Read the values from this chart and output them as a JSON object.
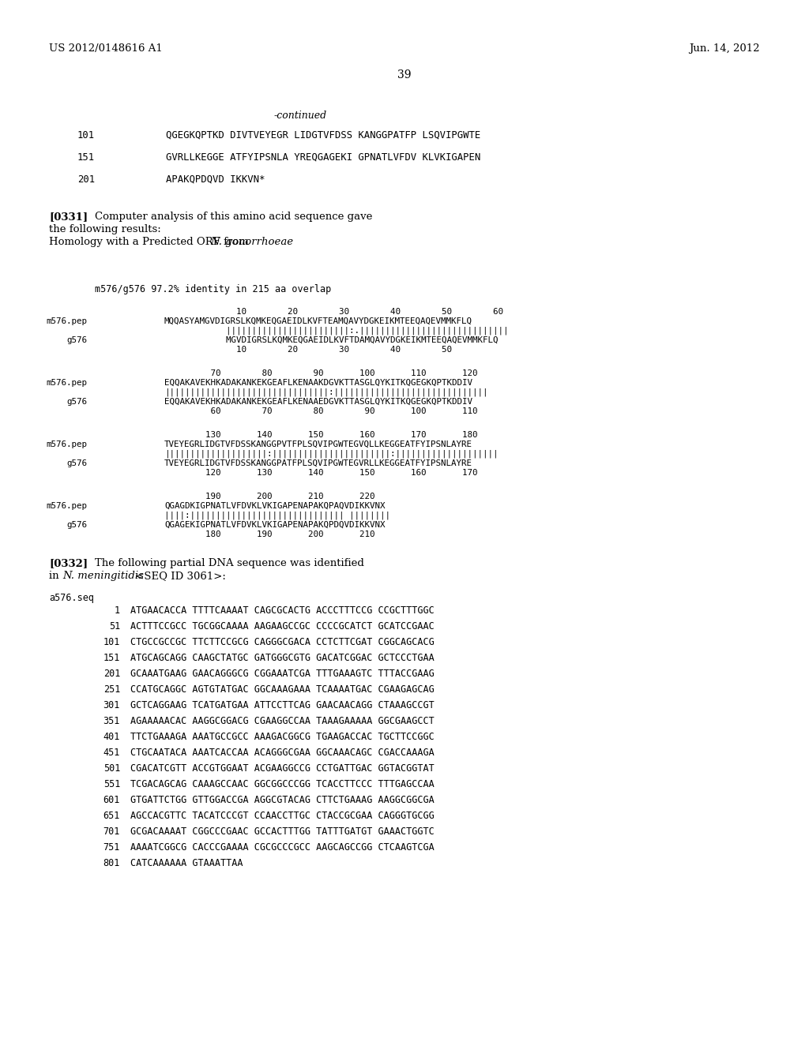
{
  "header_left": "US 2012/0148616 A1",
  "header_right": "Jun. 14, 2012",
  "page_number": "39",
  "bg": "#ffffff",
  "continued_label": "-continued",
  "seq_lines": [
    {
      "num": "101",
      "seq": "QGEGKQPTKD DIVTVEYEGR LIDGTVFDSS KANGGPATFP LSQVIPGWTE"
    },
    {
      "num": "151",
      "seq": "GVRLLKEGGE ATFYIPSNLA YREQGAGEKI GPNATLVFDV KLVKIGAPEN"
    },
    {
      "num": "201",
      "seq": "APAKQPDQVD IKKVN*"
    }
  ],
  "p0331_label": "[0331]",
  "p0331_line1": "Computer analysis of this amino acid sequence gave",
  "p0331_line2": "the following results:",
  "p0331_line3_pre": "Homology with a Predicted ORF from ",
  "p0331_line3_italic": "N. gonorrhoeae",
  "aln_header": "m576/g576 97.2% identity in 215 aa overlap",
  "aln_blocks": [
    {
      "top": "              10        20        30        40        50        60",
      "m_seq": "MQQASYAMGVDIGRSLKQMKEQGAEIDLKVFTEAMQAVYDGKEIKMTEEQAQEVMMKFLQ",
      "match": "            ||||||||||||||||||||||||:.|||||||||||||||||||||||||||||",
      "g_seq": "            MGVDIGRSLKQMKEQGAEIDLKVFTDAMQAVYDGKEIKMTEEQAQEVMMKFLQ",
      "bot": "              10        20        30        40        50"
    },
    {
      "top": "         70        80        90       100       110       120",
      "m_seq": "EQQAKAVEKHKADAKANKEKGEAFLKENAAKDGVKTTASGLQYKITKQGEGKQPTKDDIV",
      "match": "||||||||||||||||||||||||||||||||:||||||||||||||||||||||||||||||",
      "g_seq": "EQQAKAVEKHKADAKANKEKGEAFLKENAAEDGVKTTASGLQYKITKQGEGKQPTKDDIV",
      "bot": "         60        70        80        90       100       110"
    },
    {
      "top": "        130       140       150       160       170       180",
      "m_seq": "TVEYEGRLIDGTVFDSSKANGGPVTFPLSQVIPGWTEGVQLLKEGGEATFYIPSNLAYRE",
      "match": "||||||||||||||||||||:|||||||||||||||||||||||:||||||||||||||||||||",
      "g_seq": "TVEYEGRLIDGTVFDSSKANGGPATFPLSQVIPGWTEGVRLLKEGGEATFYIPSNLAYRE",
      "bot": "        120       130       140       150       160       170"
    },
    {
      "top": "        190       200       210       220",
      "m_seq": "QGAGDKIGPNATLVFDVKLVKIGAPENAPAKQPAQVDIKKVNX",
      "match": "||||:|||||||||||||||||||||||||||||| ||||||||",
      "g_seq": "QGAGEKIGPNATLVFDVKLVKIGAPENAPAKQPDQVDIKKVNX",
      "bot": "        180       190       200       210"
    }
  ],
  "p0332_label": "[0332]",
  "p0332_line1": "The following partial DNA sequence was identified",
  "p0332_line2_pre": "in ",
  "p0332_line2_italic": "N. meningitidis",
  "p0332_line2_post": " <SEQ ID 3061>:",
  "dna_label": "a576.seq",
  "dna_lines": [
    {
      "num": "1",
      "seq": "ATGAACACCA TTTTCAAAAT CAGCGCACTG ACCCTTTCCG CCGCTTTGGC"
    },
    {
      "num": "51",
      "seq": "ACTTTCCGCC TGCGGCAAAA AAGAAGCCGC CCCCGCATCT GCATCCGAAC"
    },
    {
      "num": "101",
      "seq": "CTGCCGCCGC TTCTTCCGCG CAGGGCGACA CCTCTTCGAT CGGCAGCACG"
    },
    {
      "num": "151",
      "seq": "ATGCAGCAGG CAAGCTATGC GATGGGCGTG GACATCGGAC GCTCCCTGAA"
    },
    {
      "num": "201",
      "seq": "GCAAATGAAG GAACAGGGCG CGGAAATCGA TTTGAAAGTC TTTACCGAAG"
    },
    {
      "num": "251",
      "seq": "CCATGCAGGC AGTGTATGAC GGCAAAGAAA TCAAAATGAC CGAAGAGCAG"
    },
    {
      "num": "301",
      "seq": "GCTCAGGAAG TCATGATGAA ATTCCTTCAG GAACAACAGG CTAAAGCCGT"
    },
    {
      "num": "351",
      "seq": "AGAAAAACAC AAGGCGGACG CGAAGGCCAA TAAAGAAAAA GGCGAAGCCT"
    },
    {
      "num": "401",
      "seq": "TTCTGAAAGA AAATGCCGCC AAAGACGGCG TGAAGACCAC TGCTTCCGGC"
    },
    {
      "num": "451",
      "seq": "CTGCAATACA AAATCACCAA ACAGGGCGAA GGCAAACAGC CGACCAAAGA"
    },
    {
      "num": "501",
      "seq": "CGACATCGTT ACCGTGGAAT ACGAAGGCCG CCTGATTGAC GGTACGGTAT"
    },
    {
      "num": "551",
      "seq": "TCGACAGCAG CAAAGCCAAC GGCGGCCCGG TCACCTTCCC TTTGAGCCAA"
    },
    {
      "num": "601",
      "seq": "GTGATTCTGG GTTGGACCGA AGGCGTACAG CTTCTGAAAG AAGGCGGCGA"
    },
    {
      "num": "651",
      "seq": "AGCCACGTTC TACATCCCGT CCAACCTTGC CTACCGCGAA CAGGGTGCGG"
    },
    {
      "num": "701",
      "seq": "GCGACAAAAT CGGCCCGAAC GCCACTTTGG TATTTGATGT GAAACTGGTC"
    },
    {
      "num": "751",
      "seq": "AAAATCGGCG CACCCGAAAA CGCGCCCGCC AAGCAGCCGG CTCAAGTCGA"
    },
    {
      "num": "801",
      "seq": "CATCAAAAAA GTAAATTAA"
    }
  ]
}
